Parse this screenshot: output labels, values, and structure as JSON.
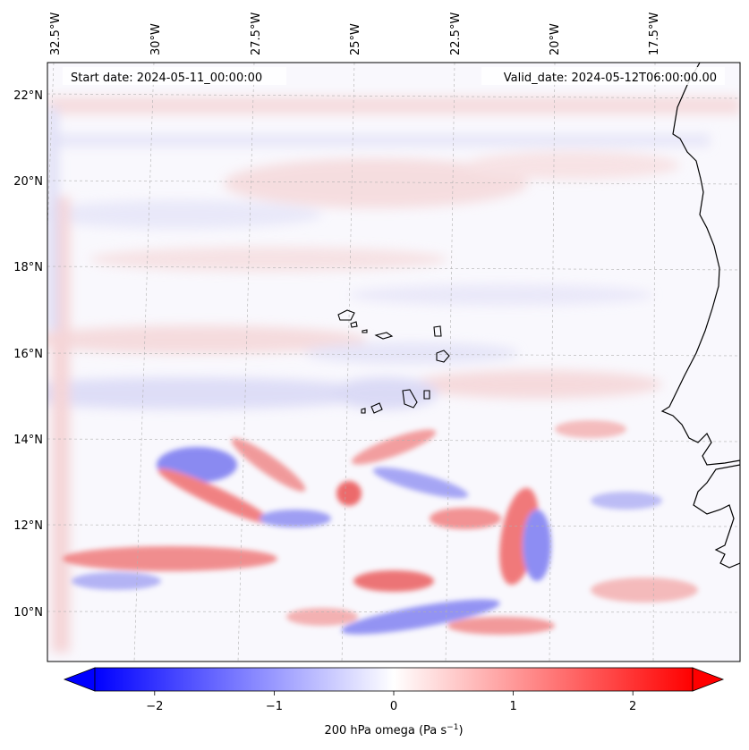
{
  "header": {
    "start_date": "Start date: 2024-05-11_00:00:00",
    "valid_date": "Valid_date: 2024-05-12T06:00:00.00"
  },
  "map": {
    "lon_ticks": [
      "32.5°W",
      "30°W",
      "27.5°W",
      "25°W",
      "22.5°W",
      "20°W",
      "17.5°W"
    ],
    "lat_ticks": [
      "22°N",
      "20°N",
      "18°N",
      "16°N",
      "14°N",
      "12°N",
      "10°N"
    ],
    "colors": {
      "negative": "#0000ff",
      "zero": "#ffffff",
      "positive": "#ff0000",
      "coastline": "#000000",
      "grid": "#b0b0b0"
    }
  },
  "colorbar": {
    "label_main": "200 hPa omega (Pa s",
    "label_exp": "−1",
    "label_close": ")",
    "ticks": [
      "−2",
      "−1",
      "0",
      "1",
      "2"
    ],
    "range": [
      -2.75,
      2.75
    ],
    "tick_values": [
      -2,
      -1,
      0,
      1,
      2
    ]
  }
}
